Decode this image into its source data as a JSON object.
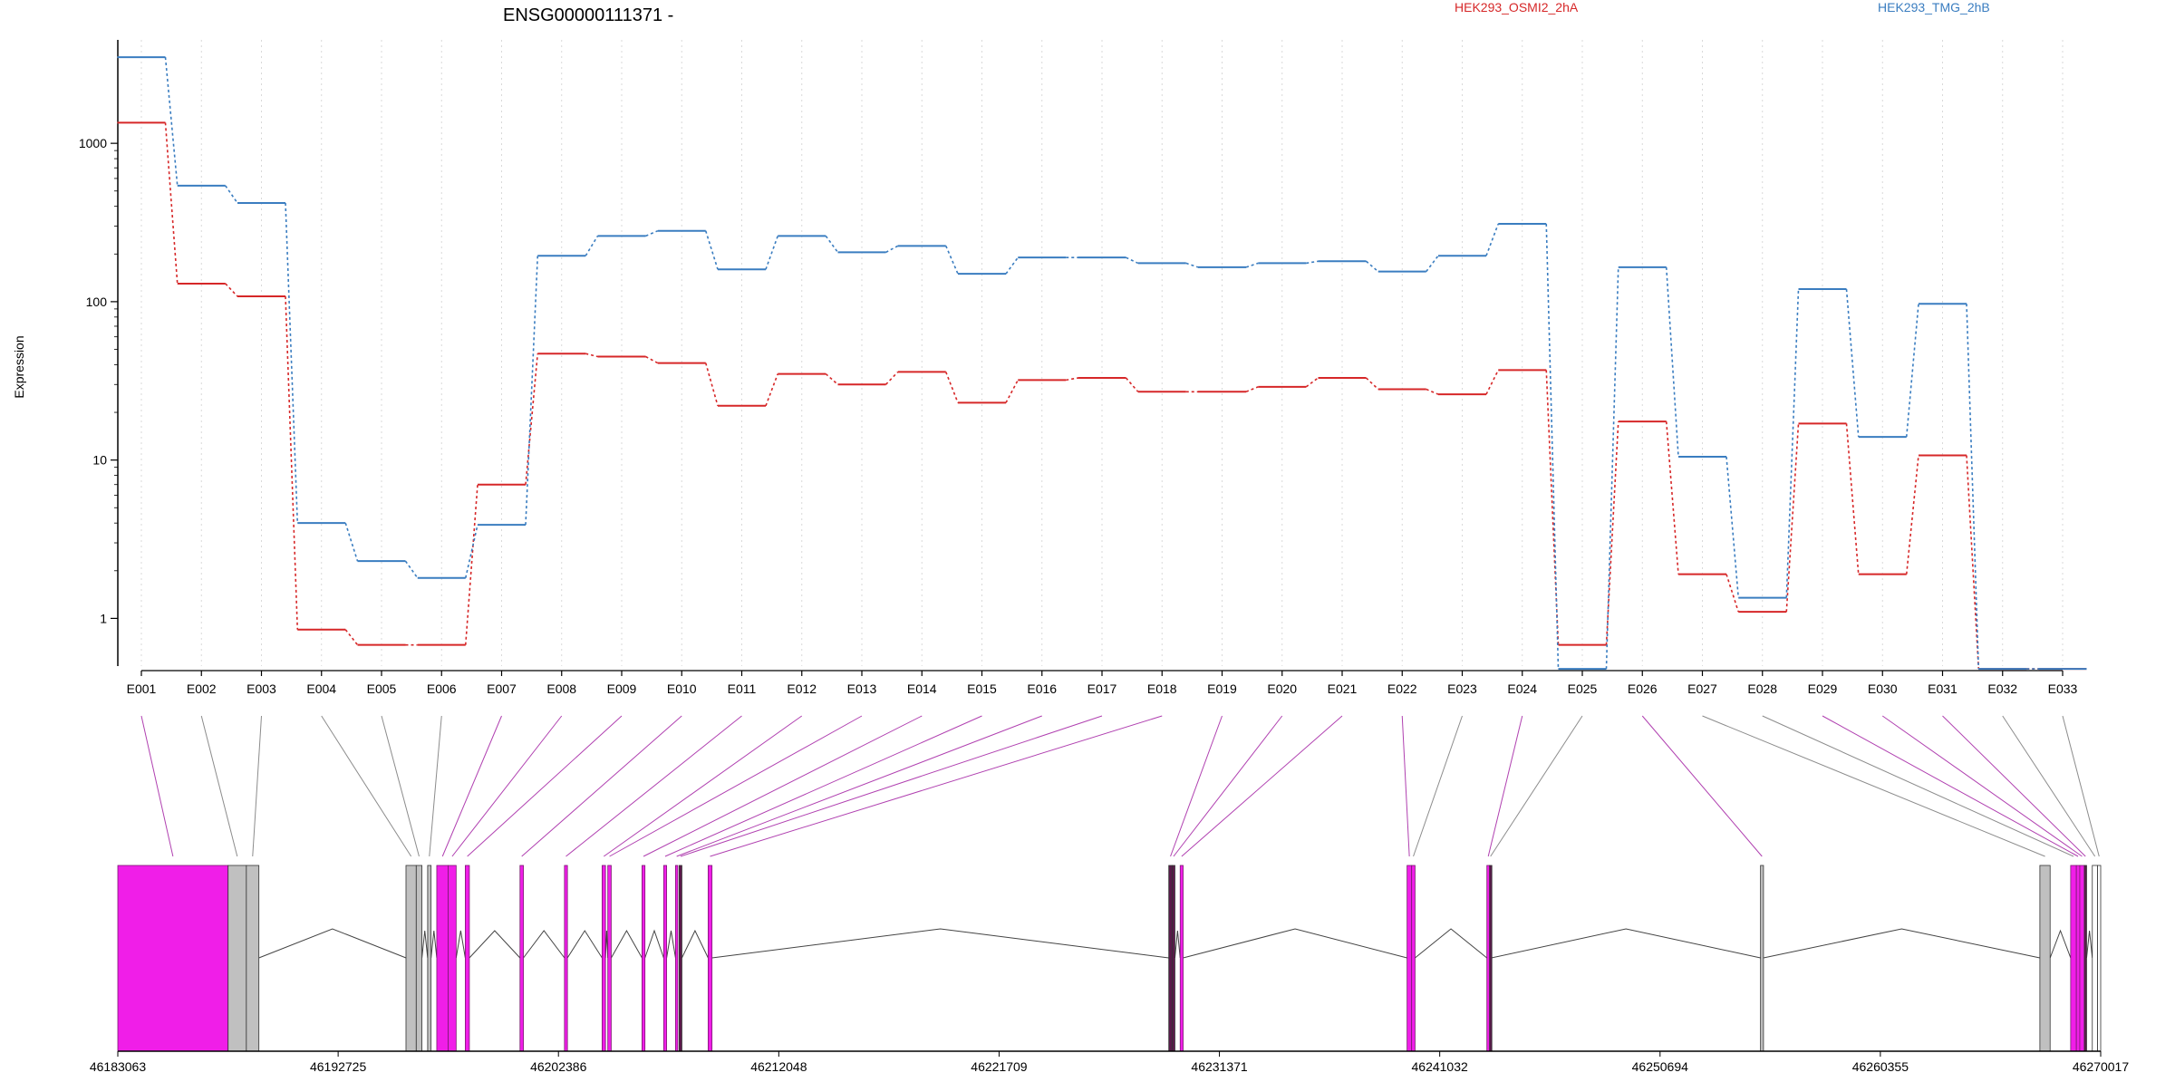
{
  "gene_title": "ENSG00000111371 -",
  "y_axis_label": "Expression",
  "legend": [
    {
      "name": "HEK293_OSMI2_2hA",
      "color": "#d62728"
    },
    {
      "name": "HEK293_TMG_2hB",
      "color": "#3a7dc0"
    }
  ],
  "colors": {
    "red_series": "#d62728",
    "blue_series": "#3a7dc0",
    "exon_highlight": "#f01ee8",
    "exon_gray": "#c0c0c0",
    "exon_dark": "#5a1a4a",
    "connector_magenta": "#b040b0",
    "connector_gray": "#8c8c8c"
  },
  "chart_data": {
    "type": "line",
    "title": "ENSG00000111371 -",
    "ylabel": "Expression",
    "y_scale": "log",
    "ylim": [
      0.5,
      4500
    ],
    "y_ticks": [
      1,
      10,
      100,
      1000
    ],
    "y_tick_labels": [
      "1",
      "10",
      "100",
      "1000"
    ],
    "grid": "vertical dotted",
    "legend_position": "top",
    "categories": [
      "E001",
      "E002",
      "E003",
      "E004",
      "E005",
      "E006",
      "E007",
      "E008",
      "E009",
      "E010",
      "E011",
      "E012",
      "E013",
      "E014",
      "E015",
      "E016",
      "E017",
      "E018",
      "E019",
      "E020",
      "E021",
      "E022",
      "E023",
      "E024",
      "E025",
      "E026",
      "E027",
      "E028",
      "E029",
      "E030",
      "E031",
      "E032",
      "E033"
    ],
    "series": [
      {
        "name": "HEK293_OSMI2_2hA",
        "values": [
          1350,
          130,
          108,
          0.85,
          0.68,
          0.68,
          7.0,
          47,
          45,
          41,
          22,
          35,
          30,
          36,
          23,
          32,
          33,
          27,
          27,
          29,
          33,
          28,
          26,
          37,
          0.68,
          17.5,
          1.9,
          1.1,
          17,
          1.9,
          10.7,
          0.48,
          0.48
        ]
      },
      {
        "name": "HEK293_TMG_2hB",
        "values": [
          3500,
          540,
          420,
          4.0,
          2.3,
          1.8,
          3.9,
          195,
          260,
          280,
          160,
          260,
          205,
          225,
          150,
          190,
          190,
          175,
          165,
          175,
          180,
          155,
          195,
          310,
          0.48,
          165,
          10.5,
          1.35,
          120,
          14,
          97,
          0.48,
          0.48
        ]
      }
    ],
    "gene_model": {
      "x_tick_labels": [
        "46183063",
        "46192725",
        "46202386",
        "46212048",
        "46221709",
        "46231371",
        "46241032",
        "46250694",
        "46260355",
        "46270017"
      ],
      "exons": [
        {
          "id": "E001",
          "start": 46183063,
          "end": 46187900,
          "style": "highlight"
        },
        {
          "id": "E002",
          "start": 46187900,
          "end": 46188700,
          "style": "gray"
        },
        {
          "id": "E003",
          "start": 46188700,
          "end": 46189250,
          "style": "gray"
        },
        {
          "id": "E004",
          "start": 46195700,
          "end": 46196150,
          "style": "gray"
        },
        {
          "id": "E005",
          "start": 46196150,
          "end": 46196400,
          "style": "gray"
        },
        {
          "id": "E006",
          "start": 46196650,
          "end": 46196800,
          "style": "gray"
        },
        {
          "id": "E007",
          "start": 46197050,
          "end": 46197550,
          "style": "highlight"
        },
        {
          "id": "E008",
          "start": 46197550,
          "end": 46197900,
          "style": "highlight"
        },
        {
          "id": "E009",
          "start": 46198300,
          "end": 46198480,
          "style": "highlight"
        },
        {
          "id": "E010",
          "start": 46200700,
          "end": 46200850,
          "style": "highlight"
        },
        {
          "id": "E011",
          "start": 46202650,
          "end": 46202780,
          "style": "highlight"
        },
        {
          "id": "E012",
          "start": 46204300,
          "end": 46204450,
          "style": "highlight"
        },
        {
          "id": "E013",
          "start": 46204550,
          "end": 46204700,
          "style": "highlight"
        },
        {
          "id": "E014",
          "start": 46206050,
          "end": 46206180,
          "style": "highlight"
        },
        {
          "id": "E015",
          "start": 46207000,
          "end": 46207130,
          "style": "highlight"
        },
        {
          "id": "E016",
          "start": 46207520,
          "end": 46207620,
          "style": "highlight"
        },
        {
          "id": "E017",
          "start": 46207680,
          "end": 46207800,
          "style": "dark"
        },
        {
          "id": "E018",
          "start": 46208950,
          "end": 46209120,
          "style": "highlight"
        },
        {
          "id": "E019",
          "start": 46229150,
          "end": 46229300,
          "style": "dark"
        },
        {
          "id": "E020",
          "start": 46229300,
          "end": 46229420,
          "style": "dark"
        },
        {
          "id": "E021",
          "start": 46229650,
          "end": 46229780,
          "style": "highlight"
        },
        {
          "id": "E022",
          "start": 46239600,
          "end": 46239800,
          "style": "highlight"
        },
        {
          "id": "E023",
          "start": 46239800,
          "end": 46239950,
          "style": "highlight"
        },
        {
          "id": "E024",
          "start": 46243100,
          "end": 46243220,
          "style": "highlight"
        },
        {
          "id": "E025",
          "start": 46243220,
          "end": 46243300,
          "style": "dark"
        },
        {
          "id": "E026",
          "start": 46255100,
          "end": 46255230,
          "style": "gray"
        },
        {
          "id": "E027",
          "start": 46267350,
          "end": 46267800,
          "style": "gray"
        },
        {
          "id": "E028",
          "start": 46268700,
          "end": 46268950,
          "style": "highlight"
        },
        {
          "id": "E029",
          "start": 46268950,
          "end": 46269100,
          "style": "highlight"
        },
        {
          "id": "E030",
          "start": 46269100,
          "end": 46269300,
          "style": "highlight"
        },
        {
          "id": "E031",
          "start": 46269300,
          "end": 46269400,
          "style": "dark"
        },
        {
          "id": "E032",
          "start": 46269650,
          "end": 46269880,
          "style": "white"
        },
        {
          "id": "E033",
          "start": 46269880,
          "end": 46270017,
          "style": "white"
        }
      ],
      "connector_styles": [
        "magenta",
        "gray",
        "gray",
        "gray",
        "gray",
        "gray",
        "magenta",
        "magenta",
        "magenta",
        "magenta",
        "magenta",
        "magenta",
        "magenta",
        "magenta",
        "magenta",
        "magenta",
        "magenta",
        "magenta",
        "magenta",
        "magenta",
        "magenta",
        "magenta",
        "gray",
        "magenta",
        "gray",
        "magenta",
        "gray",
        "gray",
        "magenta",
        "magenta",
        "magenta",
        "gray",
        "gray"
      ]
    }
  }
}
